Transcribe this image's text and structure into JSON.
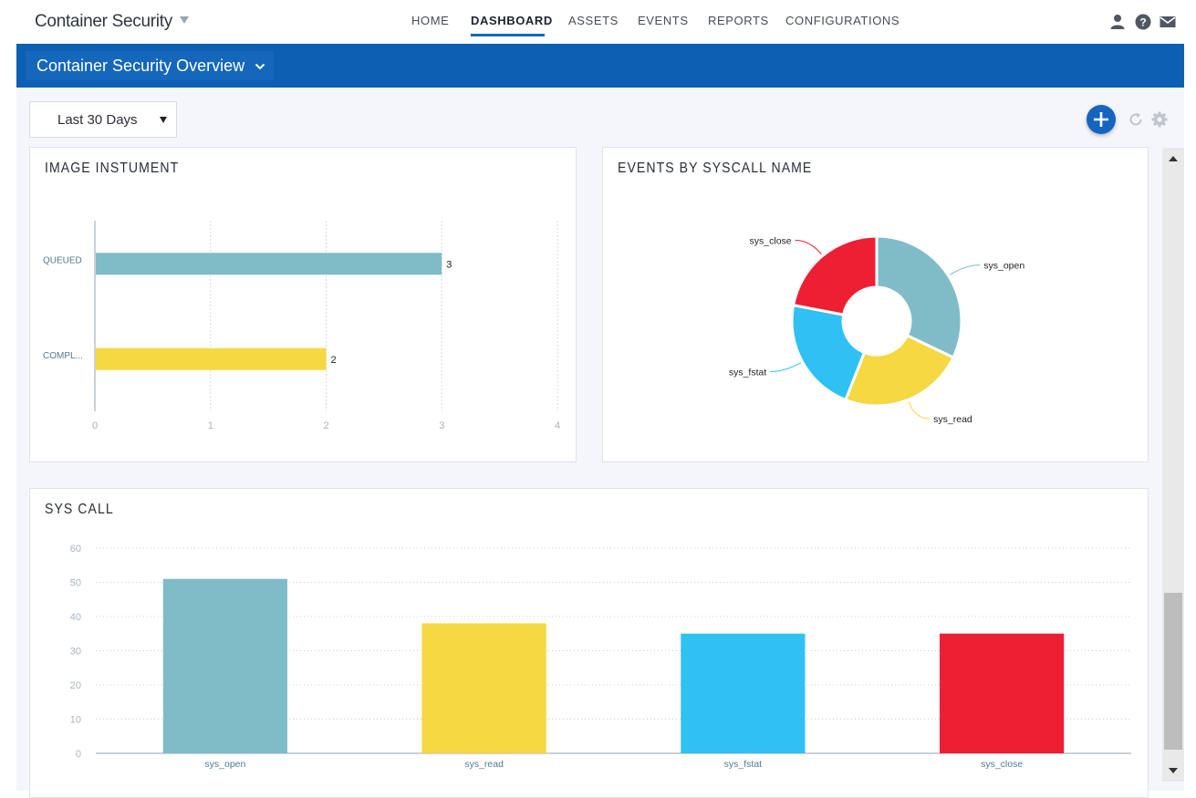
{
  "app": {
    "title": "Container Security"
  },
  "nav": {
    "items": [
      "HOME",
      "DASHBOARD",
      "ASSETS",
      "EVENTS",
      "REPORTS",
      "CONFIGURATIONS"
    ],
    "active": "DASHBOARD"
  },
  "header": {
    "title": "Container Security Overview"
  },
  "toolbar": {
    "range": "Last 30 Days"
  },
  "icons": {
    "user": "user-icon",
    "help": "help-icon",
    "mail": "mail-icon",
    "add": "plus-icon",
    "refresh": "refresh-icon",
    "settings": "gear-icon"
  },
  "colors": {
    "teal": "#7fbcc8",
    "yellow": "#f5d842",
    "blue": "#2ec1f2",
    "red": "#ee1f33",
    "brand": "#0d5fb3"
  },
  "widgets": {
    "image_instrument": {
      "title": "IMAGE INSTUMENT"
    },
    "events_by_syscall": {
      "title": "EVENTS BY SYSCALL NAME"
    },
    "sys_call": {
      "title": "SYS CALL"
    }
  },
  "chart_data": [
    {
      "type": "bar",
      "orientation": "horizontal",
      "categories": [
        "QUEUED",
        "COMPL..."
      ],
      "values": [
        3,
        2
      ],
      "value_labels": [
        "3",
        "2"
      ],
      "colors": [
        "#7fbcc8",
        "#f5d842"
      ],
      "xticks": [
        "0",
        "1",
        "2",
        "3",
        "4"
      ],
      "xlim": [
        0,
        4
      ],
      "grid": true
    },
    {
      "type": "pie",
      "donut": true,
      "labels": [
        "sys_open",
        "sys_read",
        "sys_fstat",
        "sys_close"
      ],
      "values": [
        51,
        38,
        35,
        35
      ],
      "colors": [
        "#7fbcc8",
        "#f5d842",
        "#2ec1f2",
        "#ee1f33"
      ]
    },
    {
      "type": "bar",
      "categories": [
        "sys_open",
        "sys_read",
        "sys_fstat",
        "sys_close"
      ],
      "values": [
        51,
        38,
        35,
        35
      ],
      "colors": [
        "#7fbcc8",
        "#f5d842",
        "#2ec1f2",
        "#ee1f33"
      ],
      "yticks": [
        "0",
        "10",
        "20",
        "30",
        "40",
        "50",
        "60"
      ],
      "ylim": [
        0,
        60
      ],
      "grid": true
    }
  ]
}
